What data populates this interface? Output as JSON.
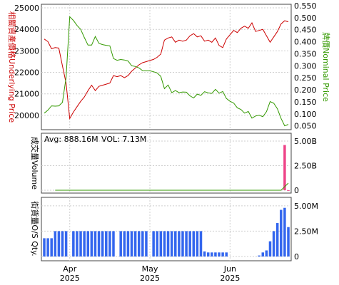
{
  "chart_data": [
    {
      "type": "line",
      "panel": "price",
      "left_axis_label": "相關資產價格Underlying Price",
      "right_axis_label": "牌價Nominal Price",
      "left_ticks": [
        20000,
        21000,
        22000,
        23000,
        24000,
        25000
      ],
      "right_ticks": [
        0.05,
        0.1,
        0.15,
        0.2,
        0.25,
        0.3,
        0.35,
        0.4,
        0.45,
        0.5,
        0.55
      ],
      "ylim_left": [
        19400,
        25100
      ],
      "ylim_right": [
        0.04,
        0.55
      ],
      "grid": true,
      "series": [
        {
          "axis": "left",
          "color": "#cc0000",
          "values": [
            23550,
            23430,
            23100,
            23150,
            23130,
            22300,
            21500,
            19850,
            20150,
            20400,
            20650,
            20850,
            21150,
            21400,
            21150,
            21350,
            21400,
            21450,
            21500,
            21850,
            21800,
            21850,
            21750,
            21850,
            22050,
            22200,
            22350,
            22450,
            22500,
            22550,
            22600,
            22700,
            22850,
            23500,
            23600,
            23650,
            23400,
            23500,
            23450,
            23500,
            23700,
            23800,
            23650,
            23700,
            23450,
            23500,
            23400,
            23600,
            23250,
            23150,
            23550,
            23750,
            23950,
            23850,
            24050,
            24150,
            24050,
            24300,
            23900,
            23950,
            24000,
            23700,
            23400,
            23650,
            23900,
            24250,
            24400,
            24350
          ]
        },
        {
          "axis": "right",
          "color": "#339900",
          "values": [
            0.103,
            0.115,
            0.133,
            0.132,
            0.133,
            0.148,
            0.251,
            0.504,
            0.489,
            0.468,
            0.452,
            0.418,
            0.386,
            0.386,
            0.422,
            0.393,
            0.388,
            0.385,
            0.383,
            0.33,
            0.323,
            0.326,
            0.324,
            0.32,
            0.3,
            0.297,
            0.291,
            0.28,
            0.279,
            0.279,
            0.275,
            0.27,
            0.256,
            0.205,
            0.22,
            0.188,
            0.197,
            0.188,
            0.191,
            0.19,
            0.175,
            0.166,
            0.182,
            0.177,
            0.192,
            0.187,
            0.185,
            0.202,
            0.186,
            0.193,
            0.164,
            0.152,
            0.145,
            0.125,
            0.118,
            0.103,
            0.11,
            0.082,
            0.091,
            0.094,
            0.088,
            0.109,
            0.151,
            0.144,
            0.121,
            0.081,
            0.05,
            0.056
          ]
        }
      ]
    },
    {
      "type": "bar",
      "panel": "volume",
      "ylabel": "成交量Volume",
      "ticks_text": [
        "5.00B",
        "2.50B",
        "0"
      ],
      "tick_values": [
        5000000000,
        2500000000,
        0
      ],
      "ylim": [
        0,
        5000000000
      ],
      "avg_text": "Avg: 888.16M",
      "vol_text": "VOL: 7.13M",
      "color": "#ee4488",
      "avg_color": "#339900",
      "values": [
        0,
        0,
        0,
        0,
        0,
        0,
        0,
        0,
        0,
        0,
        0,
        0,
        0,
        0,
        0,
        0,
        0,
        0,
        0,
        0,
        0,
        0,
        0,
        0,
        0,
        0,
        0,
        0,
        0,
        0,
        0,
        0,
        0,
        0,
        0,
        0,
        0,
        0,
        0,
        0,
        0,
        0,
        0,
        0,
        0,
        0,
        0,
        0,
        0,
        0,
        0,
        0,
        0,
        0,
        0,
        0,
        0,
        0,
        0,
        0,
        0,
        0,
        0,
        0,
        0,
        0,
        4600000000,
        7130000
      ]
    },
    {
      "type": "bar",
      "panel": "outstanding",
      "ylabel": "街貨量O/S Qty.",
      "ticks_text": [
        "5.00M",
        "2.50M",
        "0"
      ],
      "tick_values": [
        5000000,
        2500000,
        0
      ],
      "ylim": [
        0,
        5200000
      ],
      "color": "#3366ee",
      "values": [
        1800000,
        1800000,
        1800000,
        2500000,
        2500000,
        2500000,
        2500000,
        0,
        2500000,
        2500000,
        2500000,
        2500000,
        2500000,
        2500000,
        2500000,
        2500000,
        2500000,
        2500000,
        2500000,
        2500000,
        0,
        2500000,
        2500000,
        2500000,
        2500000,
        2500000,
        2500000,
        2500000,
        2500000,
        0,
        2500000,
        2500000,
        2500000,
        2500000,
        2500000,
        2500000,
        2500000,
        2500000,
        2500000,
        2500000,
        2500000,
        2500000,
        2500000,
        2500000,
        500000,
        400000,
        400000,
        400000,
        400000,
        400000,
        400000,
        0,
        0,
        0,
        0,
        0,
        0,
        0,
        0,
        100000,
        400000,
        600000,
        1500000,
        2500000,
        3300000,
        4600000,
        4800000,
        2900000
      ]
    }
  ],
  "x_labels": [
    {
      "month": "Apr",
      "year": "2025",
      "index": 7
    },
    {
      "month": "May",
      "year": "2025",
      "index": 29
    },
    {
      "month": "Jun",
      "year": "2025",
      "index": 51
    }
  ]
}
